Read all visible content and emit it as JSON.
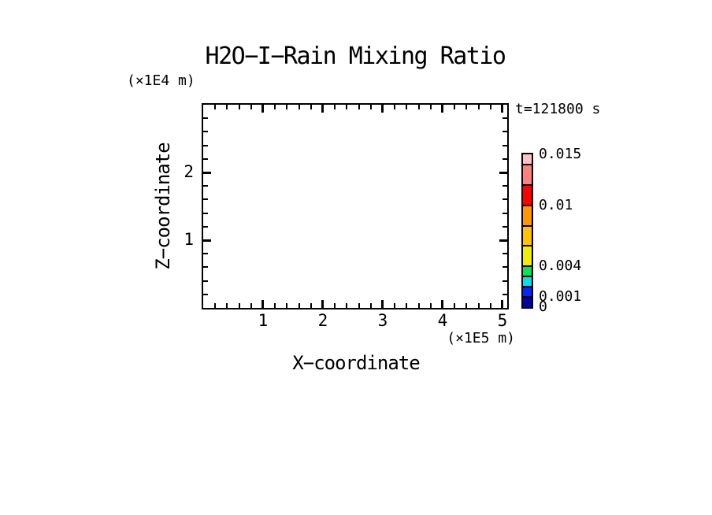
{
  "plot": {
    "title": "H2O−I−Rain Mixing Ratio",
    "time_label": "t=121800 s",
    "x_axis": {
      "label": "X−coordinate",
      "unit_label": "(×1E5 m)",
      "min": 0,
      "max": 5.08,
      "major_ticks": [
        1,
        2,
        3,
        4,
        5
      ],
      "major_tick_labels": [
        "1",
        "2",
        "3",
        "4",
        "5"
      ],
      "minor_tick_step": 0.2
    },
    "z_axis": {
      "label": "Z−coordinate",
      "unit_label": "(×1E4 m)",
      "min": 0,
      "max": 3,
      "major_ticks": [
        1,
        2
      ],
      "major_tick_labels": [
        "1",
        "2"
      ],
      "minor_tick_step": 0.2
    },
    "colorbar": {
      "vmin": 0,
      "vmax": 0.015,
      "levels": [
        0,
        0.001,
        0.002,
        0.003,
        0.004,
        0.006,
        0.008,
        0.01,
        0.012,
        0.014,
        0.015
      ],
      "colors_bottom_to_top": [
        "#0000AA",
        "#0028FF",
        "#00E0EE",
        "#00E455",
        "#EEEE00",
        "#FFC400",
        "#FF9800",
        "#FF0000",
        "#FF8080",
        "#FFC0C8"
      ],
      "labeled_levels": [
        {
          "value": 0.015,
          "label": "0.015"
        },
        {
          "value": 0.01,
          "label": "0.01"
        },
        {
          "value": 0.004,
          "label": "0.004"
        },
        {
          "value": 0.001,
          "label": "0.001"
        },
        {
          "value": 0,
          "label": "0"
        }
      ]
    }
  },
  "chart_data": {
    "type": "heatmap",
    "title": "H2O−I−Rain Mixing Ratio",
    "xlabel": "X−coordinate (×1E5 m)",
    "ylabel": "Z−coordinate (×1E4 m)",
    "xlim": [
      0,
      5.08
    ],
    "ylim": [
      0,
      3
    ],
    "x_major_ticks": [
      1,
      2,
      3,
      4,
      5
    ],
    "z_major_ticks": [
      1,
      2
    ],
    "minor_tick_step": 0.2,
    "time_annotation": "t=121800 s",
    "values": [],
    "field_empty": true,
    "colorbar_levels": [
      0,
      0.001,
      0.002,
      0.003,
      0.004,
      0.006,
      0.008,
      0.01,
      0.012,
      0.014,
      0.015
    ],
    "colorbar_labeled_levels": [
      "0",
      "0.001",
      "0.004",
      "0.01",
      "0.015"
    ],
    "colorbar_colors_bottom_to_top": [
      "#0000AA",
      "#0028FF",
      "#00E0EE",
      "#00E455",
      "#EEEE00",
      "#FFC400",
      "#FF9800",
      "#FF0000",
      "#FF8080",
      "#FFC0C8"
    ],
    "grid": false,
    "legend_position": "right-colorbar"
  }
}
